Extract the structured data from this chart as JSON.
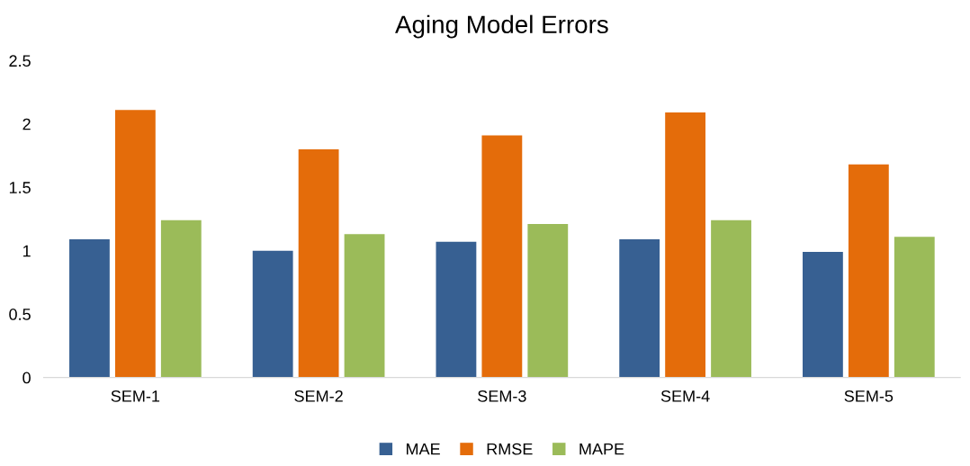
{
  "chart_data": {
    "type": "bar",
    "title": "Aging Model Errors",
    "categories": [
      "SEM-1",
      "SEM-2",
      "SEM-3",
      "SEM-4",
      "SEM-5"
    ],
    "series": [
      {
        "name": "MAE",
        "color": "#376092",
        "values": [
          1.09,
          1.0,
          1.07,
          1.09,
          0.99
        ]
      },
      {
        "name": "RMSE",
        "color": "#e46c0a",
        "values": [
          2.11,
          1.8,
          1.91,
          2.09,
          1.68
        ]
      },
      {
        "name": "MAPE",
        "color": "#9bbb59",
        "values": [
          1.24,
          1.13,
          1.21,
          1.24,
          1.11
        ]
      }
    ],
    "ylim": [
      0,
      2.5
    ],
    "yticks": [
      0,
      0.5,
      1,
      1.5,
      2,
      2.5
    ],
    "grid": false,
    "legend": "bottom"
  }
}
